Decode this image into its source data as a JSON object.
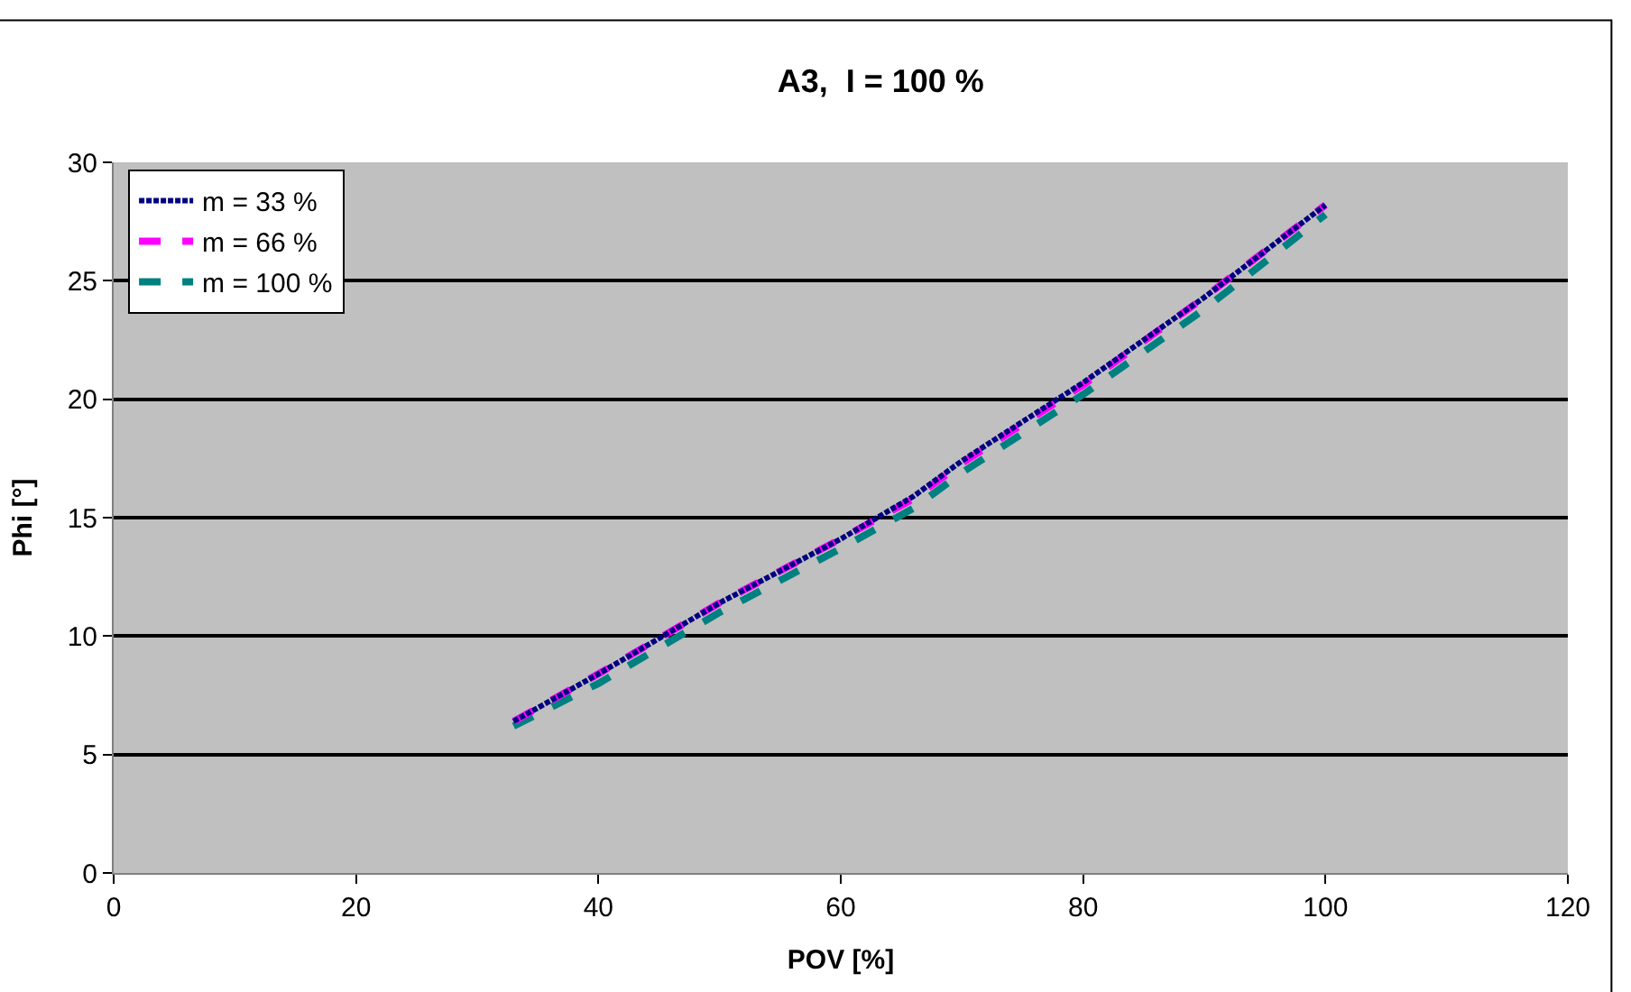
{
  "chart_data": {
    "type": "line",
    "title": "A3,  I = 100 %",
    "xlabel": "POV [%]",
    "ylabel": "Phi [°]",
    "xlim": [
      0,
      120
    ],
    "xticks": [
      0,
      20,
      40,
      60,
      80,
      100,
      120
    ],
    "ylim": [
      0,
      30
    ],
    "yticks": [
      0,
      5,
      10,
      15,
      20,
      25,
      30
    ],
    "grid": "y",
    "legend": "top left",
    "x": [
      33,
      40,
      50,
      60,
      66,
      70,
      80,
      90,
      100
    ],
    "series": [
      {
        "name": "m = 33 %",
        "color": "#000080",
        "line_style": "dotted",
        "values": [
          6.4,
          8.4,
          11.4,
          14.1,
          15.9,
          17.4,
          20.7,
          24.3,
          28.2
        ]
      },
      {
        "name": "m = 66 %",
        "color": "#ff00ff",
        "line_style": "dashed",
        "values": [
          6.4,
          8.4,
          11.4,
          14.1,
          15.8,
          17.3,
          20.6,
          24.3,
          28.2
        ]
      },
      {
        "name": "m = 100 %",
        "color": "#008080",
        "line_style": "dashed",
        "values": [
          6.2,
          8.0,
          11.0,
          13.7,
          15.4,
          16.9,
          20.2,
          23.8,
          27.8
        ]
      }
    ]
  }
}
